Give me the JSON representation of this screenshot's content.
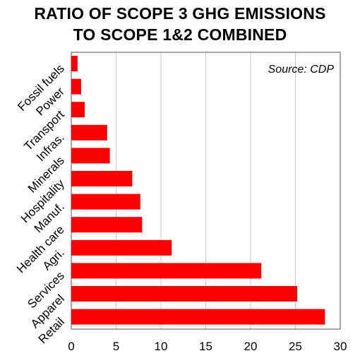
{
  "chart_data": {
    "type": "bar",
    "orientation": "horizontal",
    "title_lines": [
      "RATIO OF SCOPE 3 GHG EMISSIONS",
      "TO SCOPE 1&2 COMBINED"
    ],
    "source_note": "Source: CDP",
    "categories": [
      "Fossil fuels",
      "Power",
      "Transport",
      "Infras.",
      "Minerals",
      "Hospitality",
      "Manuf.",
      "Health care",
      "Agri.",
      "Services",
      "Apparel",
      "Retail"
    ],
    "values": [
      0.7,
      1.1,
      1.5,
      4.0,
      4.3,
      6.8,
      7.7,
      7.9,
      11.2,
      21.2,
      25.2,
      28.3
    ],
    "xlim": [
      0,
      30
    ],
    "xticks": [
      0,
      5,
      10,
      15,
      20,
      25,
      30
    ],
    "xlabel": "",
    "ylabel": "",
    "bar_color": "#ff0000",
    "grid": "vertical",
    "grid_color": "#c8c8c8",
    "legend": "none"
  }
}
